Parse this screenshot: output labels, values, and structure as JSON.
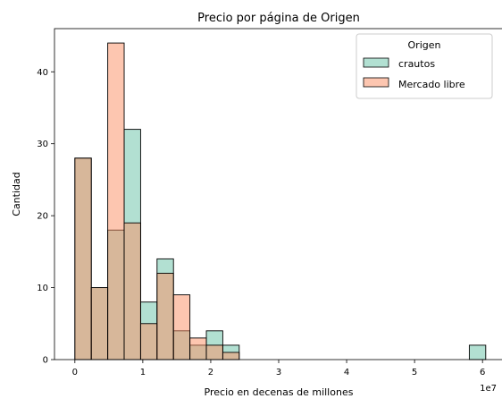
{
  "chart_data": {
    "type": "bar",
    "title": "Precio por página de Origen",
    "xlabel": "Precio en decenas de millones",
    "ylabel": "Cantidad",
    "x_offset_label": "1e7",
    "xlim": [
      -0.3,
      6.3
    ],
    "ylim": [
      0,
      46
    ],
    "x_ticks": [
      0,
      1,
      2,
      3,
      4,
      5,
      6
    ],
    "y_ticks": [
      0,
      10,
      20,
      30,
      40
    ],
    "bin_width": 0.2419,
    "bin_starts": [
      0,
      0.2419,
      0.4838,
      0.7257,
      0.9676,
      1.2095,
      1.4514,
      1.6933,
      1.9352,
      2.1771,
      5.8056
    ],
    "grid": false,
    "legend": {
      "title": "Origen",
      "position": "top-right"
    },
    "series": [
      {
        "name": "crautos",
        "color": "#66c2a5",
        "values": [
          28,
          10,
          18,
          32,
          8,
          14,
          4,
          2,
          4,
          2,
          2
        ]
      },
      {
        "name": "Mercado libre",
        "color": "#fc8d62",
        "values": [
          28,
          10,
          44,
          19,
          5,
          12,
          9,
          3,
          2,
          1,
          0
        ]
      }
    ]
  }
}
